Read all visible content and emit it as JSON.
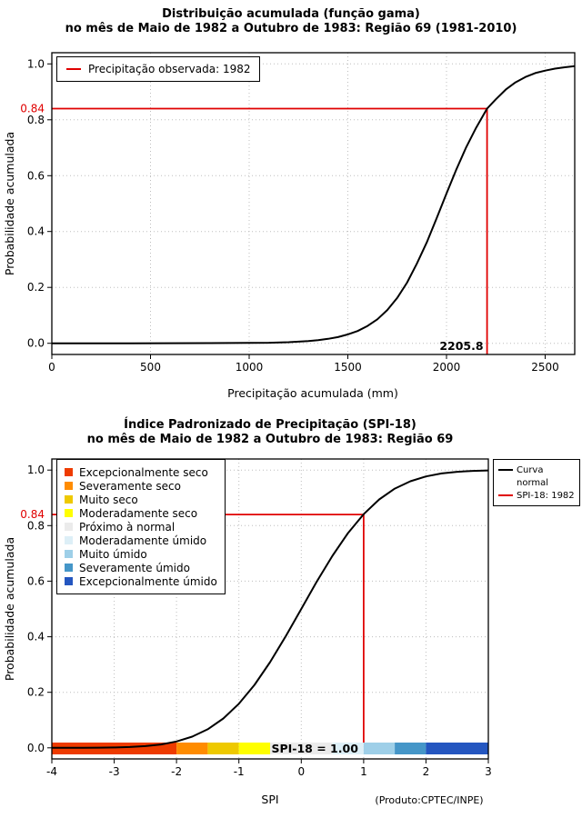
{
  "colors": {
    "highlight": "#E00000",
    "curve": "#000000",
    "grid": "#BDBDBD",
    "background": "#FFFFFF"
  },
  "chart_data": [
    {
      "type": "line",
      "title": "Distribuição acumulada (função gama)",
      "subtitle": "no mês de Maio de 1982 a Outubro de 1983: Região 69 (1981-2010)",
      "xlabel": "Precipitação acumulada (mm)",
      "ylabel": "Probabilidade acumulada",
      "xlim": [
        0,
        2650
      ],
      "ylim": [
        0,
        1
      ],
      "x_ticks": [
        0,
        500,
        1000,
        1500,
        2000,
        2500
      ],
      "y_ticks": [
        0,
        0.2,
        0.4,
        0.6,
        0.8,
        1
      ],
      "grid": true,
      "legend_position": "top-left",
      "legend_entries": [
        {
          "label": "Precipitação observada: 1982",
          "color": "#E00000"
        }
      ],
      "series": [
        {
          "name": "Distribuição gama acumulada",
          "color": "#000000",
          "x": [
            0,
            200,
            400,
            600,
            800,
            900,
            1000,
            1100,
            1200,
            1300,
            1350,
            1400,
            1450,
            1500,
            1550,
            1600,
            1650,
            1700,
            1750,
            1800,
            1850,
            1900,
            1950,
            2000,
            2050,
            2100,
            2150,
            2205.8,
            2250,
            2300,
            2350,
            2400,
            2450,
            2500,
            2550,
            2600,
            2650
          ],
          "y": [
            0,
            0,
            0.0001,
            0.0003,
            0.0006,
            0.001,
            0.0015,
            0.002,
            0.004,
            0.008,
            0.011,
            0.016,
            0.022,
            0.032,
            0.044,
            0.062,
            0.086,
            0.119,
            0.162,
            0.217,
            0.285,
            0.361,
            0.447,
            0.536,
            0.622,
            0.702,
            0.771,
            0.84,
            0.873,
            0.908,
            0.934,
            0.953,
            0.967,
            0.976,
            0.983,
            0.988,
            0.992
          ]
        }
      ],
      "annotations": {
        "probability": 0.84,
        "probability_label": "0.84",
        "precipitation": 2205.8,
        "precipitation_label": "2205.8"
      }
    },
    {
      "type": "line",
      "title": "Índice Padronizado de Precipitação (SPI-18)",
      "subtitle": "no mês de Maio de 1982 a Outubro de 1983: Região 69",
      "xlabel": "SPI",
      "ylabel": "Probabilidade acumulada",
      "source": "(Produto:CPTEC/INPE)",
      "xlim": [
        -4,
        3
      ],
      "ylim": [
        0,
        1
      ],
      "x_ticks": [
        -4,
        -3,
        -2,
        -1,
        0,
        1,
        2,
        3
      ],
      "y_ticks": [
        0,
        0.2,
        0.4,
        0.6,
        0.8,
        1
      ],
      "grid": true,
      "legend_position": "top-left",
      "series": [
        {
          "name": "Curva normal",
          "color": "#000000",
          "x": [
            -4,
            -3.75,
            -3.5,
            -3.25,
            -3,
            -2.75,
            -2.5,
            -2.25,
            -2,
            -1.75,
            -1.5,
            -1.25,
            -1,
            -0.75,
            -0.5,
            -0.25,
            0,
            0.25,
            0.5,
            0.75,
            1,
            1.25,
            1.5,
            1.75,
            2,
            2.25,
            2.5,
            2.75,
            3
          ],
          "y": [
            0,
            0.0001,
            0.0002,
            0.0006,
            0.0013,
            0.003,
            0.0062,
            0.0122,
            0.0228,
            0.0401,
            0.0668,
            0.1056,
            0.1587,
            0.2266,
            0.3085,
            0.4013,
            0.5,
            0.5987,
            0.6915,
            0.7734,
            0.8413,
            0.8944,
            0.9332,
            0.9599,
            0.9772,
            0.9878,
            0.9938,
            0.997,
            0.9987
          ]
        }
      ],
      "line_legend": [
        {
          "lines": [
            "Curva",
            "normal"
          ],
          "color": "#000000"
        },
        {
          "lines": [
            "SPI-18: 1982"
          ],
          "color": "#E00000"
        }
      ],
      "categories": [
        {
          "label": "Excepcionalmente seco",
          "color": "#EE3B00",
          "range": [
            -4,
            -2
          ]
        },
        {
          "label": "Severamente seco",
          "color": "#FF8C00",
          "range": [
            -2,
            -1.5
          ]
        },
        {
          "label": "Muito seco",
          "color": "#EEC900",
          "range": [
            -1.5,
            -1
          ]
        },
        {
          "label": "Moderadamente seco",
          "color": "#FFFF00",
          "range": [
            -1,
            -0.5
          ]
        },
        {
          "label": "Próximo à normal",
          "color": "#EBEBEB",
          "range": [
            -0.5,
            0.5
          ]
        },
        {
          "label": "Moderadamente úmido",
          "color": "#DDEFF7",
          "range": [
            0.5,
            1
          ]
        },
        {
          "label": "Muito úmido",
          "color": "#9ECFE8",
          "range": [
            1,
            1.5
          ]
        },
        {
          "label": "Severamente úmido",
          "color": "#4596C8",
          "range": [
            1.5,
            2
          ]
        },
        {
          "label": "Excepcionalmente úmido",
          "color": "#2456C0",
          "range": [
            2,
            3
          ]
        }
      ],
      "annotations": {
        "probability": 0.84,
        "probability_label": "0.84",
        "spi_value": 1.0,
        "spi_label": "SPI-18 = 1.00"
      }
    }
  ]
}
